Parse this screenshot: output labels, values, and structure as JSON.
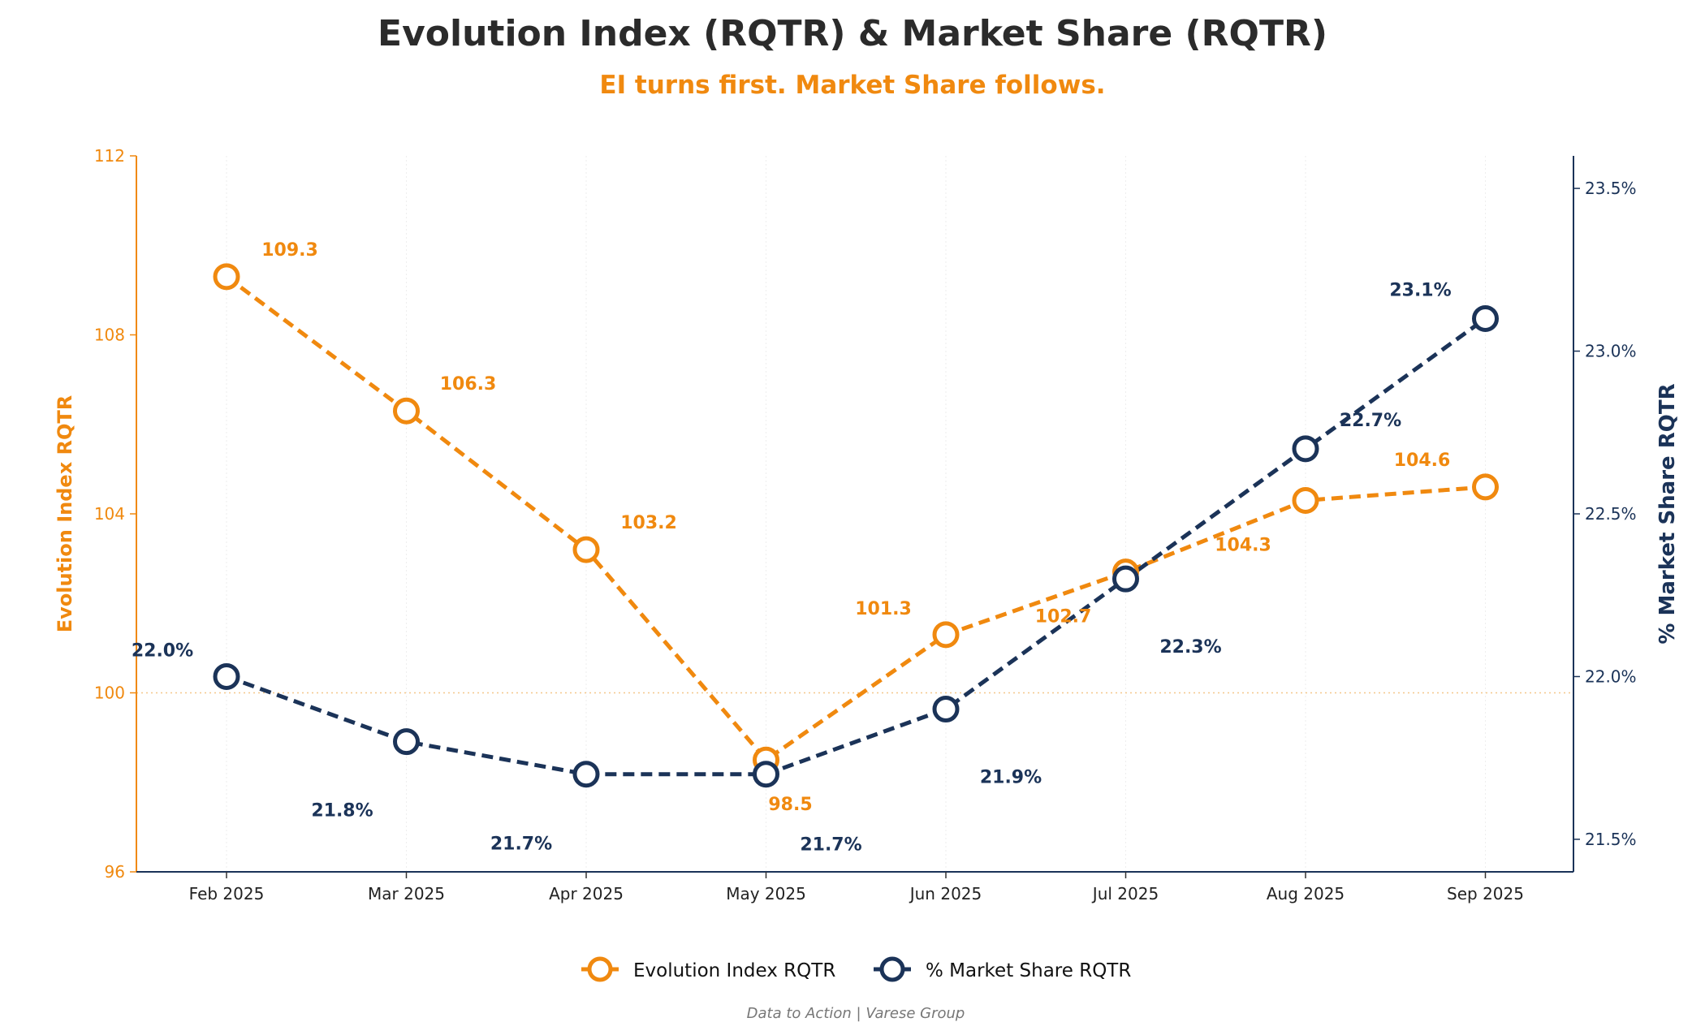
{
  "chart_data": {
    "type": "line",
    "title": "Evolution Index (RQTR)  &  Market Share (RQTR)",
    "subtitle": "EI turns first.  Market Share follows.",
    "categories": [
      "Feb 2025",
      "Mar 2025",
      "Apr 2025",
      "May 2025",
      "Jun 2025",
      "Jul 2025",
      "Aug 2025",
      "Sep 2025"
    ],
    "y_left": {
      "label": "Evolution Index RQTR",
      "range": [
        96,
        112
      ],
      "ticks": [
        "96",
        "100",
        "104",
        "108",
        "112"
      ],
      "reference_line": 100
    },
    "y_right": {
      "label": "% Market Share RQTR",
      "range": [
        21.4,
        23.6
      ],
      "ticks": [
        "21.5%",
        "22.0%",
        "22.5%",
        "23.0%",
        "23.5%"
      ]
    },
    "series": [
      {
        "name": "Evolution Index RQTR",
        "axis": "left",
        "color": "#F0890F",
        "values": [
          109.3,
          106.3,
          103.2,
          98.5,
          101.3,
          102.7,
          104.3,
          104.6
        ],
        "labels": [
          "109.3",
          "106.3",
          "103.2",
          "98.5",
          "101.3",
          "102.7",
          "104.3",
          "104.6"
        ]
      },
      {
        "name": "% Market Share RQTR",
        "axis": "right",
        "color": "#1B3358",
        "values": [
          22.0,
          21.8,
          21.7,
          21.7,
          21.9,
          22.3,
          22.7,
          23.1
        ],
        "labels": [
          "22.0%",
          "21.8%",
          "21.7%",
          "21.7%",
          "21.9%",
          "22.3%",
          "22.7%",
          "23.1%"
        ]
      }
    ],
    "grid": "vertical-light",
    "legend_position": "bottom-center",
    "footer": "Data to Action  |  Varese Group"
  }
}
